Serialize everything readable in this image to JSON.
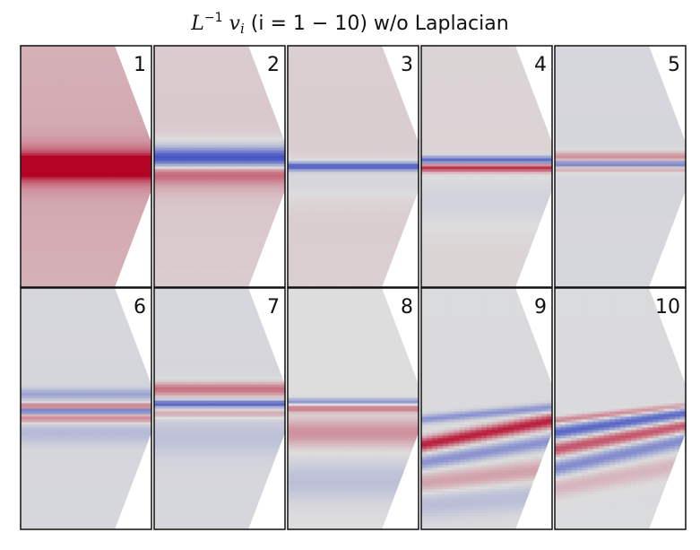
{
  "title": {
    "base": "L",
    "sup": "−1",
    "vec": "v",
    "sub": "i",
    "paren": "(i = 1 − 10) w/o Laplacian"
  },
  "chart_data": {
    "type": "heatmap",
    "title": "L^{-1} v_i (i = 1 − 10) w/o Laplacian",
    "colormap": "coolwarm",
    "colors": {
      "negative": "#3b4cc0",
      "neutral": "#dddddd",
      "positive": "#b40426"
    },
    "grid": "2x5",
    "panels": [
      {
        "label": "1",
        "background": 0.25,
        "features": [
          {
            "y": 0.5,
            "tilt": 0.0,
            "amp": 0.95,
            "width": 0.03,
            "spread": 0.06,
            "spreadAmp": 0.45
          }
        ]
      },
      {
        "label": "2",
        "background": 0.1,
        "features": [
          {
            "y": 0.47,
            "tilt": 0.0,
            "amp": -0.9,
            "width": 0.03,
            "spread": 0.05,
            "spreadAmp": -0.4
          },
          {
            "y": 0.52,
            "tilt": 0.0,
            "amp": 0.5,
            "width": 0.03,
            "spread": 0.06,
            "spreadAmp": 0.25
          }
        ]
      },
      {
        "label": "3",
        "background": 0.08,
        "features": [
          {
            "y": 0.5,
            "tilt": 0.0,
            "amp": -0.9,
            "width": 0.012,
            "spread": 0.0,
            "spreadAmp": 0.0
          },
          {
            "y": 0.56,
            "tilt": 0.0,
            "amp": -0.12,
            "width": 0.06,
            "spread": 0.0,
            "spreadAmp": 0.0
          }
        ]
      },
      {
        "label": "4",
        "background": 0.05,
        "features": [
          {
            "y": 0.475,
            "tilt": 0.0,
            "amp": -0.85,
            "width": 0.012,
            "spread": 0.0,
            "spreadAmp": 0.0
          },
          {
            "y": 0.505,
            "tilt": 0.0,
            "amp": 0.8,
            "width": 0.012,
            "spread": 0.0,
            "spreadAmp": 0.0
          },
          {
            "y": 0.64,
            "tilt": 0.0,
            "amp": -0.12,
            "width": 0.08,
            "spread": 0.0,
            "spreadAmp": 0.0
          }
        ]
      },
      {
        "label": "5",
        "background": -0.05,
        "features": [
          {
            "y": 0.46,
            "tilt": 0.0,
            "amp": 0.4,
            "width": 0.015,
            "spread": 0.0,
            "spreadAmp": 0.0
          },
          {
            "y": 0.49,
            "tilt": 0.0,
            "amp": -0.75,
            "width": 0.008,
            "spread": 0.0,
            "spreadAmp": 0.0
          },
          {
            "y": 0.51,
            "tilt": 0.0,
            "amp": 0.3,
            "width": 0.01,
            "spread": 0.0,
            "spreadAmp": 0.0
          }
        ]
      },
      {
        "label": "6",
        "background": -0.05,
        "features": [
          {
            "y": 0.44,
            "tilt": 0.0,
            "amp": -0.35,
            "width": 0.015,
            "spread": 0.0,
            "spreadAmp": 0.0
          },
          {
            "y": 0.49,
            "tilt": 0.0,
            "amp": 0.6,
            "width": 0.008,
            "spread": 0.0,
            "spreadAmp": 0.0
          },
          {
            "y": 0.51,
            "tilt": 0.0,
            "amp": -0.8,
            "width": 0.008,
            "spread": 0.0,
            "spreadAmp": 0.0
          },
          {
            "y": 0.54,
            "tilt": 0.0,
            "amp": 0.45,
            "width": 0.015,
            "spread": 0.0,
            "spreadAmp": 0.0
          },
          {
            "y": 0.6,
            "tilt": 0.0,
            "amp": -0.2,
            "width": 0.03,
            "spread": 0.0,
            "spreadAmp": 0.0
          }
        ]
      },
      {
        "label": "7",
        "background": -0.05,
        "features": [
          {
            "y": 0.42,
            "tilt": 0.0,
            "amp": 0.55,
            "width": 0.02,
            "spread": 0.0,
            "spreadAmp": 0.0
          },
          {
            "y": 0.48,
            "tilt": 0.0,
            "amp": -0.8,
            "width": 0.01,
            "spread": 0.0,
            "spreadAmp": 0.0
          },
          {
            "y": 0.52,
            "tilt": 0.0,
            "amp": 0.3,
            "width": 0.012,
            "spread": 0.0,
            "spreadAmp": 0.0
          },
          {
            "y": 0.62,
            "tilt": 0.0,
            "amp": -0.15,
            "width": 0.05,
            "spread": 0.0,
            "spreadAmp": 0.0
          }
        ]
      },
      {
        "label": "8",
        "background": 0.0,
        "features": [
          {
            "y": 0.47,
            "tilt": 0.0,
            "amp": -0.5,
            "width": 0.008,
            "spread": 0.0,
            "spreadAmp": 0.0
          },
          {
            "y": 0.5,
            "tilt": 0.0,
            "amp": 0.45,
            "width": 0.01,
            "spread": 0.0,
            "spreadAmp": 0.0
          },
          {
            "y": 0.6,
            "tilt": 0.0,
            "amp": 0.35,
            "width": 0.04,
            "spread": 0.0,
            "spreadAmp": 0.0
          },
          {
            "y": 0.8,
            "tilt": 0.0,
            "amp": -0.2,
            "width": 0.06,
            "spread": 0.0,
            "spreadAmp": 0.0
          }
        ]
      },
      {
        "label": "9",
        "background": -0.02,
        "features": [
          {
            "y": 0.52,
            "tilt": -0.05,
            "amp": -0.5,
            "width": 0.012,
            "spread": 0.0,
            "spreadAmp": 0.0
          },
          {
            "y": 0.6,
            "tilt": -0.1,
            "amp": 0.9,
            "width": 0.02,
            "spread": 0.0,
            "spreadAmp": 0.0
          },
          {
            "y": 0.68,
            "tilt": -0.09,
            "amp": -0.5,
            "width": 0.02,
            "spread": 0.0,
            "spreadAmp": 0.0
          },
          {
            "y": 0.78,
            "tilt": -0.06,
            "amp": 0.3,
            "width": 0.03,
            "spread": 0.0,
            "spreadAmp": 0.0
          },
          {
            "y": 0.88,
            "tilt": -0.04,
            "amp": -0.2,
            "width": 0.04,
            "spread": 0.0,
            "spreadAmp": 0.0
          }
        ]
      },
      {
        "label": "10",
        "background": -0.02,
        "features": [
          {
            "y": 0.52,
            "tilt": -0.06,
            "amp": 0.45,
            "width": 0.01,
            "spread": 0.0,
            "spreadAmp": 0.0
          },
          {
            "y": 0.56,
            "tilt": -0.08,
            "amp": -0.8,
            "width": 0.018,
            "spread": 0.0,
            "spreadAmp": 0.0
          },
          {
            "y": 0.62,
            "tilt": -0.1,
            "amp": 0.65,
            "width": 0.02,
            "spread": 0.0,
            "spreadAmp": 0.0
          },
          {
            "y": 0.69,
            "tilt": -0.12,
            "amp": -0.55,
            "width": 0.022,
            "spread": 0.0,
            "spreadAmp": 0.0
          },
          {
            "y": 0.78,
            "tilt": -0.1,
            "amp": 0.2,
            "width": 0.03,
            "spread": 0.0,
            "spreadAmp": 0.0
          }
        ]
      }
    ]
  }
}
